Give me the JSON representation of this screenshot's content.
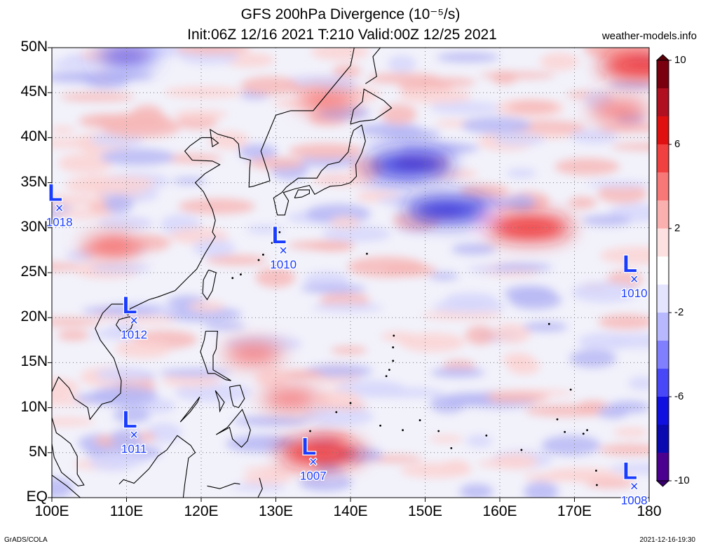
{
  "title": {
    "line1": "GFS 200hPa Divergence (10⁻⁵/s)",
    "line2": "Init:06Z 12/16 2021 T:210 Valid:00Z 12/25 2021"
  },
  "site": "weather-models.info",
  "footer": {
    "left": "GrADS/COLA",
    "right": "2021-12-16-19:30"
  },
  "lat_labels": [
    "50N",
    "45N",
    "40N",
    "35N",
    "30N",
    "25N",
    "20N",
    "15N",
    "10N",
    "5N",
    "EQ"
  ],
  "lon_labels": [
    "100E",
    "110E",
    "120E",
    "130E",
    "140E",
    "150E",
    "160E",
    "170E",
    "180"
  ],
  "colorbar": {
    "labels": [
      "10",
      "6",
      "2",
      "-2",
      "-6",
      "-10"
    ],
    "colors": [
      "#7a0010",
      "#b01020",
      "#e01010",
      "#f04040",
      "#f87878",
      "#fbb0b0",
      "#fde0e0",
      "#ffffff",
      "#e4e4ff",
      "#b8b8ff",
      "#8080ff",
      "#4848f8",
      "#1010e0",
      "#0a0ab0",
      "#4b0090"
    ]
  },
  "lows": [
    {
      "label": "L",
      "pressure": "1018",
      "lon": 101,
      "lat": 32.2
    },
    {
      "label": "L",
      "pressure": "1010",
      "lon": 131,
      "lat": 27.5
    },
    {
      "label": "L",
      "pressure": "1012",
      "lon": 111,
      "lat": 19.7
    },
    {
      "label": "L",
      "pressure": "1011",
      "lon": 111,
      "lat": 7.0
    },
    {
      "label": "L",
      "pressure": "1007",
      "lon": 135,
      "lat": 4.0
    },
    {
      "label": "L",
      "pressure": "1010",
      "lon": 178,
      "lat": 24.3
    },
    {
      "label": "L",
      "pressure": "1008",
      "lon": 178,
      "lat": 1.3
    }
  ],
  "divergence_maxima": [
    {
      "sign": "negative",
      "lon": 153,
      "lat": 32,
      "strength": "strong"
    },
    {
      "sign": "negative",
      "lon": 148,
      "lat": 37,
      "strength": "strong"
    },
    {
      "sign": "negative",
      "lon": 110,
      "lat": 49,
      "strength": "moderate"
    },
    {
      "sign": "positive",
      "lon": 164,
      "lat": 30,
      "strength": "strong"
    },
    {
      "sign": "positive",
      "lon": 179,
      "lat": 48,
      "strength": "strong"
    },
    {
      "sign": "positive",
      "lon": 136,
      "lat": 5,
      "strength": "strong"
    },
    {
      "sign": "positive",
      "lon": 127,
      "lat": 16,
      "strength": "moderate"
    },
    {
      "sign": "positive",
      "lon": 108,
      "lat": 28,
      "strength": "moderate"
    },
    {
      "sign": "positive",
      "lon": 137,
      "lat": 44,
      "strength": "moderate"
    },
    {
      "sign": "positive",
      "lon": 176,
      "lat": 43,
      "strength": "moderate"
    },
    {
      "sign": "positive",
      "lon": 132,
      "lat": 11,
      "strength": "moderate"
    }
  ]
}
